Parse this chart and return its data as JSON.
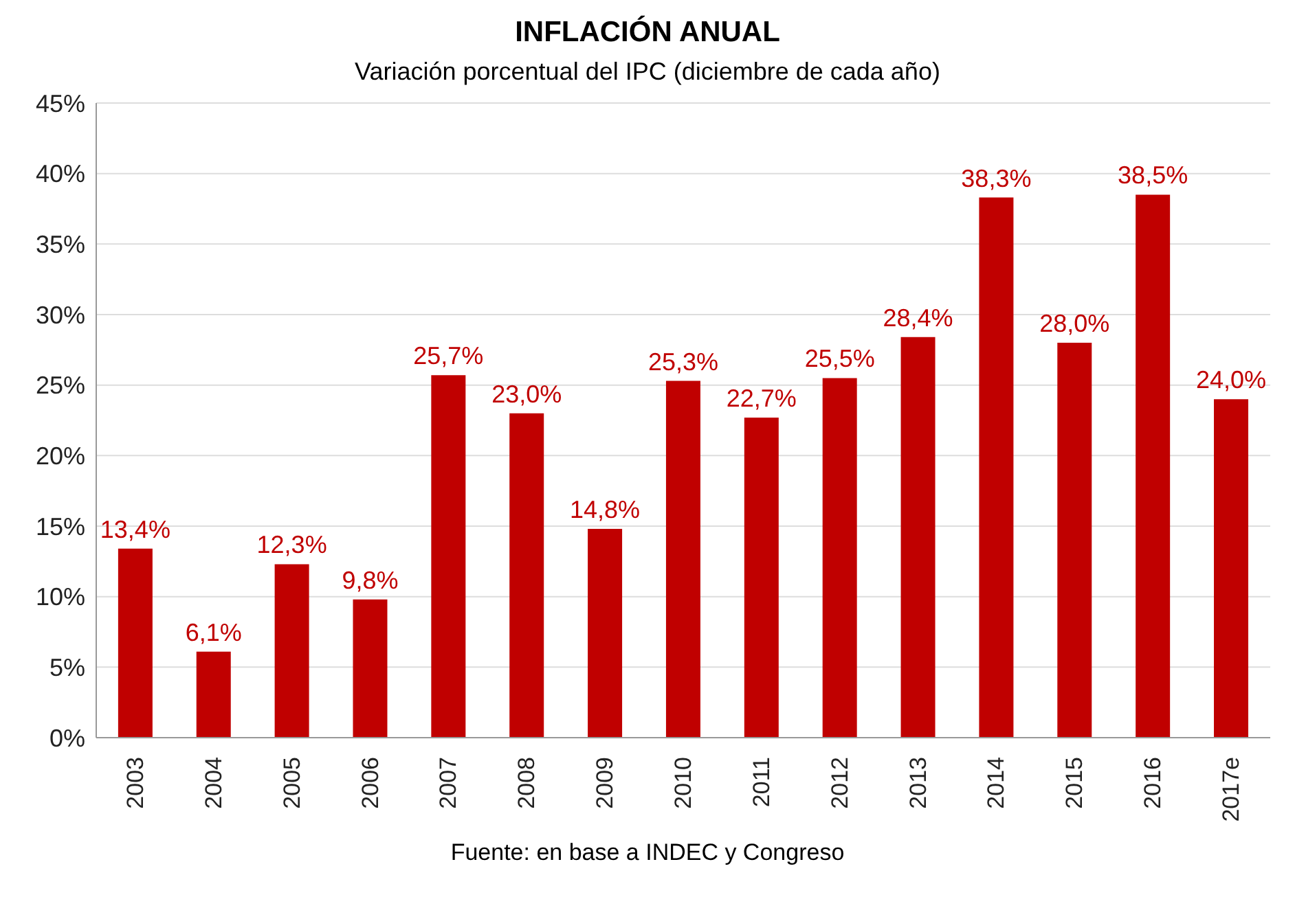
{
  "chart_data": {
    "type": "bar",
    "title": "INFLACIÓN ANUAL",
    "subtitle": "Variación porcentual del IPC (diciembre de cada año)",
    "categories": [
      "2003",
      "2004",
      "2005",
      "2006",
      "2007",
      "2008",
      "2009",
      "2010",
      "2011",
      "2012",
      "2013",
      "2014",
      "2015",
      "2016",
      "2017e"
    ],
    "values": [
      13.4,
      6.1,
      12.3,
      9.8,
      25.7,
      23.0,
      14.8,
      25.3,
      22.7,
      25.5,
      28.4,
      38.3,
      28.0,
      38.5,
      24.0
    ],
    "value_labels": [
      "13,4%",
      "6,1%",
      "12,3%",
      "9,8%",
      "25,7%",
      "23,0%",
      "14,8%",
      "25,3%",
      "22,7%",
      "25,5%",
      "28,4%",
      "38,3%",
      "28,0%",
      "38,5%",
      "24,0%"
    ],
    "color": "#c00000",
    "ylim": [
      0,
      45
    ],
    "yticks": [
      {
        "value": 0,
        "label": "0%"
      },
      {
        "value": 5,
        "label": "5%"
      },
      {
        "value": 10,
        "label": "10%"
      },
      {
        "value": 15,
        "label": "15%"
      },
      {
        "value": 20,
        "label": "20%"
      },
      {
        "value": 25,
        "label": "25%"
      },
      {
        "value": 30,
        "label": "30%"
      },
      {
        "value": 35,
        "label": "35%"
      },
      {
        "value": 40,
        "label": "40%"
      },
      {
        "value": 45,
        "label": "45%"
      }
    ],
    "grid": "y",
    "annotations": [
      "Fuente: en base a INDEC y Congreso"
    ]
  }
}
